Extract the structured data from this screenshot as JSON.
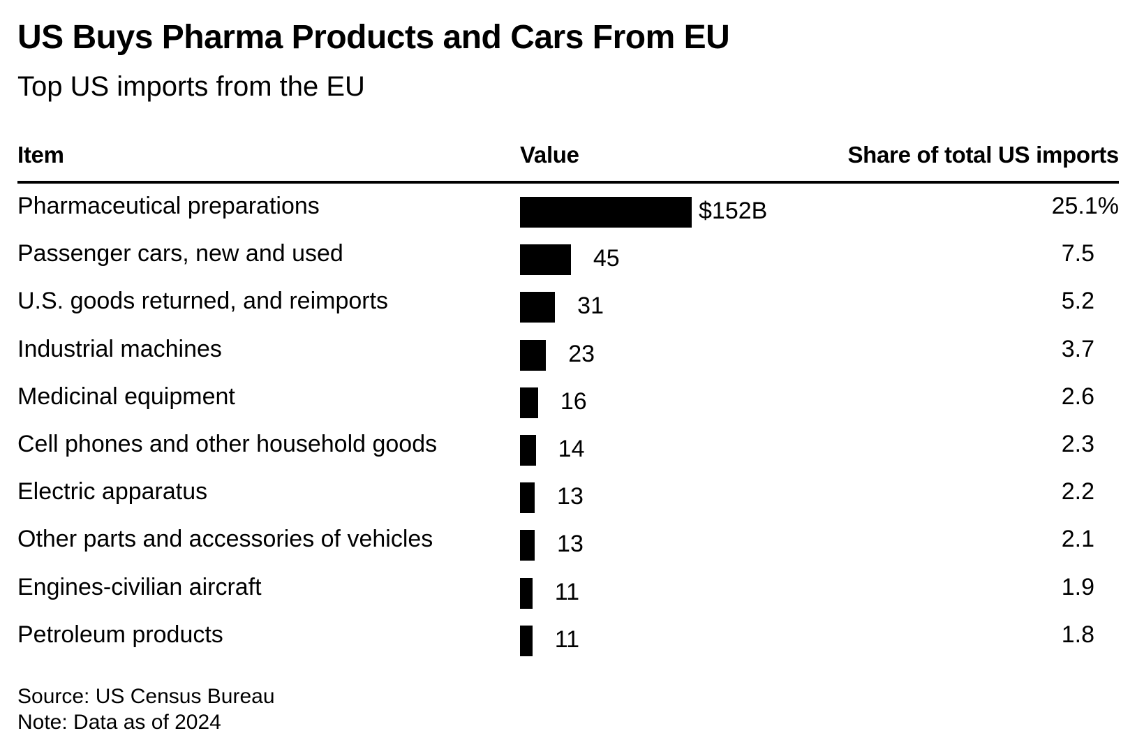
{
  "chart_data": {
    "type": "bar",
    "orientation": "horizontal",
    "title": "US Buys Pharma Products and Cars From EU",
    "subtitle": "Top US imports from the EU",
    "columns": {
      "item": "Item",
      "value": "Value",
      "share": "Share of total US imports"
    },
    "categories": [
      "Pharmaceutical preparations",
      "Passenger cars, new and used",
      "U.S. goods returned, and reimports",
      "Industrial machines",
      "Medicinal equipment",
      "Cell phones and other household goods",
      "Electric apparatus",
      "Other parts and accessories of vehicles",
      "Engines-civilian aircraft",
      "Petroleum products"
    ],
    "values": [
      152,
      45,
      31,
      23,
      16,
      14,
      13,
      13,
      11,
      11
    ],
    "value_labels": [
      "$152B",
      "45",
      "31",
      "23",
      "16",
      "14",
      "13",
      "13",
      "11",
      "11"
    ],
    "shares": [
      25.1,
      7.5,
      5.2,
      3.7,
      2.6,
      2.3,
      2.2,
      2.1,
      1.9,
      1.8
    ],
    "share_labels": [
      "25.1%",
      "7.5",
      "5.2",
      "3.7",
      "2.6",
      "2.3",
      "2.2",
      "2.1",
      "1.9",
      "1.8"
    ],
    "bar_color": "#000000",
    "xlim": [
      0,
      152
    ],
    "grid": false,
    "legend": "none"
  },
  "footer": {
    "source": "Source: US Census Bureau",
    "note": "Note: Data as of 2024"
  }
}
